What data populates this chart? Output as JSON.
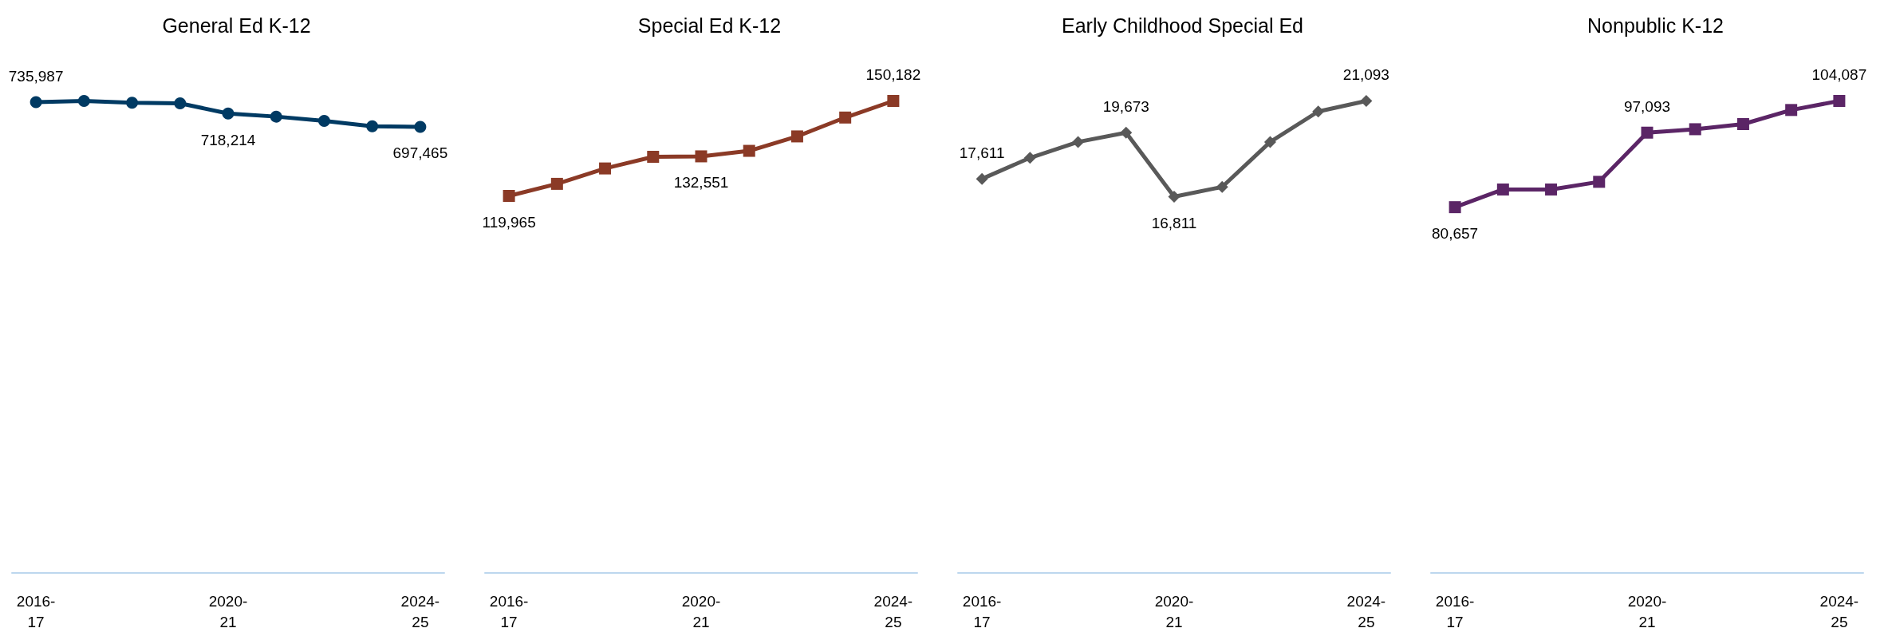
{
  "chart_data": [
    {
      "type": "line",
      "title": "General Ed K-12",
      "categories": [
        "2016-17",
        null,
        null,
        null,
        "2020-21",
        null,
        null,
        null,
        "2024-25"
      ],
      "series": [
        {
          "color": "#003a63",
          "values": [
            735987,
            737900,
            735000,
            734100,
            718214,
            713400,
            706600,
            698300,
            697465
          ],
          "value_labels": [
            "735,987",
            null,
            null,
            null,
            "718,214",
            null,
            null,
            null,
            "697,465"
          ]
        }
      ],
      "tick_labels": "x",
      "grid": false,
      "marker": "circle",
      "line_style": "solid"
    },
    {
      "type": "line",
      "title": "Special Ed K-12",
      "categories": [
        "2016-17",
        null,
        null,
        null,
        "2020-21",
        null,
        null,
        null,
        "2024-25"
      ],
      "series": [
        {
          "color": "#8b3a26",
          "values": [
            119965,
            123800,
            128700,
            132400,
            132551,
            134300,
            138900,
            144900,
            150182
          ],
          "value_labels": [
            "119,965",
            null,
            null,
            null,
            "132,551",
            null,
            null,
            null,
            "150,182"
          ]
        }
      ],
      "tick_labels": "x",
      "grid": false,
      "marker": "square",
      "line_style": "solid"
    },
    {
      "type": "line",
      "title": "Early Childhood Special Ed",
      "categories": [
        "2016-17",
        null,
        null,
        null,
        "2020-21",
        null,
        null,
        null,
        "2024-25"
      ],
      "series": [
        {
          "color": "#595959",
          "values": [
            17611,
            18550,
            19260,
            19673,
            16811,
            17250,
            19260,
            20620,
            21093
          ],
          "value_labels": [
            "17,611",
            null,
            null,
            "19,673",
            "16,811",
            null,
            null,
            null,
            "21,093"
          ]
        }
      ],
      "tick_labels": "x",
      "grid": false,
      "marker": "diamond",
      "line_style": "solid"
    },
    {
      "type": "line",
      "title": "Nonpublic K-12",
      "categories": [
        "2016-17",
        null,
        null,
        null,
        "2020-21",
        null,
        null,
        null,
        "2024-25"
      ],
      "series": [
        {
          "color": "#5b2566",
          "values": [
            80657,
            84560,
            84560,
            86250,
            97093,
            97850,
            98980,
            102090,
            104087
          ],
          "value_labels": [
            "80,657",
            null,
            null,
            null,
            "97,093",
            null,
            null,
            null,
            "104,087"
          ]
        }
      ],
      "tick_labels": "x",
      "grid": false,
      "marker": "square",
      "line_style": "solid"
    }
  ]
}
